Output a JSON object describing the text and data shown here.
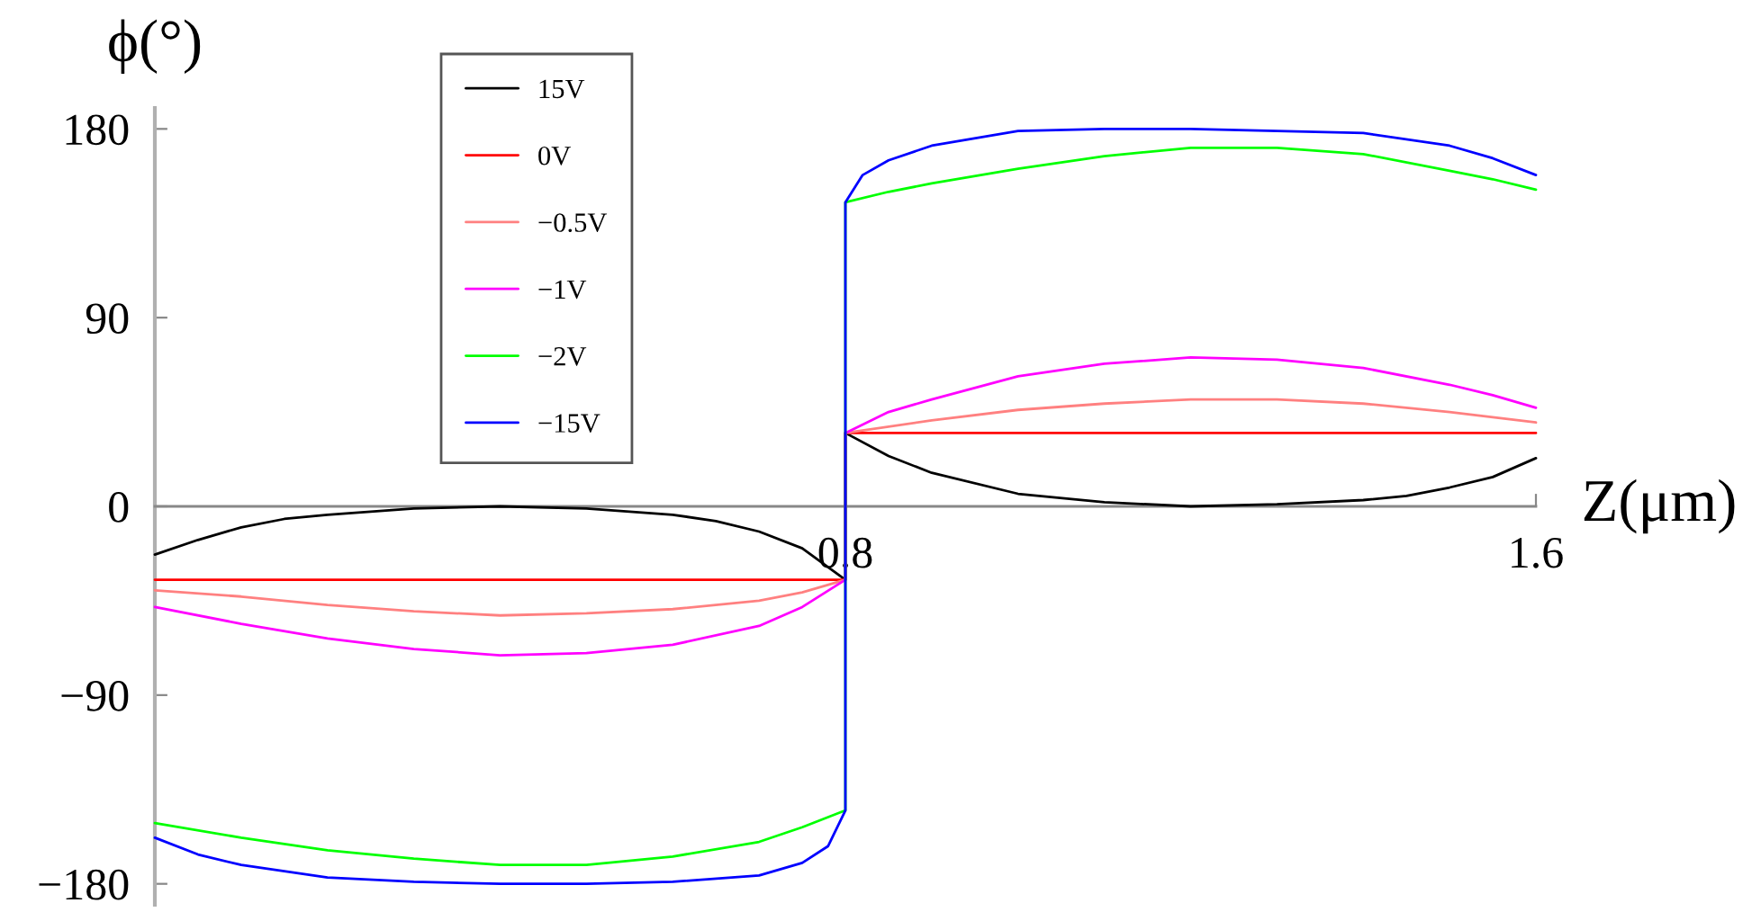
{
  "chart_data": {
    "type": "line",
    "xlabel": "Z(μm)",
    "ylabel": "ϕ(°)",
    "xlim": [
      0,
      1.6
    ],
    "xticks": [
      0.8,
      1.6
    ],
    "ylim": [
      -190,
      190
    ],
    "yticks": [
      {
        "value": -180,
        "label": "−180"
      },
      {
        "value": -90,
        "label": "−90"
      },
      0,
      90,
      180
    ],
    "legend": "top left",
    "series": [
      {
        "name": "15V",
        "color": "#000000",
        "x": [
          0,
          0.05,
          0.1,
          0.15,
          0.2,
          0.3,
          0.4,
          0.5,
          0.6,
          0.65,
          0.7,
          0.75,
          0.8,
          0.8,
          0.85,
          0.9,
          1.0,
          1.1,
          1.2,
          1.3,
          1.4,
          1.45,
          1.5,
          1.55,
          1.6
        ],
        "values": [
          -23,
          -16,
          -10,
          -6,
          -4,
          -1,
          0,
          -1,
          -4,
          -7,
          -12,
          -20,
          -35,
          35,
          24,
          16,
          6,
          2,
          0,
          1,
          3,
          5,
          9,
          14,
          23
        ]
      },
      {
        "name": "0V",
        "color": "#ff0000",
        "x": [
          0,
          0.1,
          0.2,
          0.3,
          0.4,
          0.5,
          0.6,
          0.7,
          0.8,
          0.8,
          0.9,
          1.0,
          1.1,
          1.2,
          1.3,
          1.4,
          1.5,
          1.6
        ],
        "values": [
          -35,
          -35,
          -35,
          -35,
          -35,
          -35,
          -35,
          -35,
          -35,
          35,
          35,
          35,
          35,
          35,
          35,
          35,
          35,
          35
        ]
      },
      {
        "name": "−0.5V",
        "color": "#ff8080",
        "x": [
          0,
          0.1,
          0.2,
          0.3,
          0.4,
          0.5,
          0.6,
          0.7,
          0.75,
          0.8,
          0.8,
          0.9,
          1.0,
          1.1,
          1.2,
          1.3,
          1.4,
          1.5,
          1.6
        ],
        "values": [
          -40,
          -43,
          -47,
          -50,
          -52,
          -51,
          -49,
          -45,
          -41,
          -35,
          35,
          41,
          46,
          49,
          51,
          51,
          49,
          45,
          40
        ]
      },
      {
        "name": "−1V",
        "color": "#ff00ff",
        "x": [
          0,
          0.1,
          0.2,
          0.3,
          0.4,
          0.5,
          0.6,
          0.7,
          0.75,
          0.8,
          0.8,
          0.85,
          0.9,
          1.0,
          1.1,
          1.2,
          1.3,
          1.4,
          1.5,
          1.55,
          1.6
        ],
        "values": [
          -48,
          -56,
          -63,
          -68,
          -71,
          -70,
          -66,
          -57,
          -48,
          -35,
          35,
          45,
          51,
          62,
          68,
          71,
          70,
          66,
          58,
          53,
          47
        ]
      },
      {
        "name": "−2V",
        "color": "#00ff00",
        "x": [
          0,
          0.1,
          0.2,
          0.3,
          0.4,
          0.5,
          0.6,
          0.7,
          0.75,
          0.8,
          0.8,
          0.85,
          0.9,
          1.0,
          1.1,
          1.2,
          1.3,
          1.4,
          1.5,
          1.55,
          1.6
        ],
        "values": [
          -151,
          -158,
          -164,
          -168,
          -171,
          -171,
          -167,
          -160,
          -153,
          -145,
          145,
          150,
          154,
          161,
          167,
          171,
          171,
          168,
          160,
          156,
          151
        ]
      },
      {
        "name": "−15V",
        "color": "#0000ff",
        "x": [
          0,
          0.05,
          0.1,
          0.2,
          0.3,
          0.4,
          0.5,
          0.6,
          0.7,
          0.75,
          0.78,
          0.8,
          0.8,
          0.82,
          0.85,
          0.9,
          1.0,
          1.1,
          1.2,
          1.3,
          1.4,
          1.5,
          1.55,
          1.6
        ],
        "values": [
          -158,
          -166,
          -171,
          -177,
          -179,
          -180,
          -180,
          -179,
          -176,
          -170,
          -162,
          -145,
          145,
          158,
          165,
          172,
          179,
          180,
          180,
          179,
          178,
          172,
          166,
          158
        ]
      }
    ]
  }
}
